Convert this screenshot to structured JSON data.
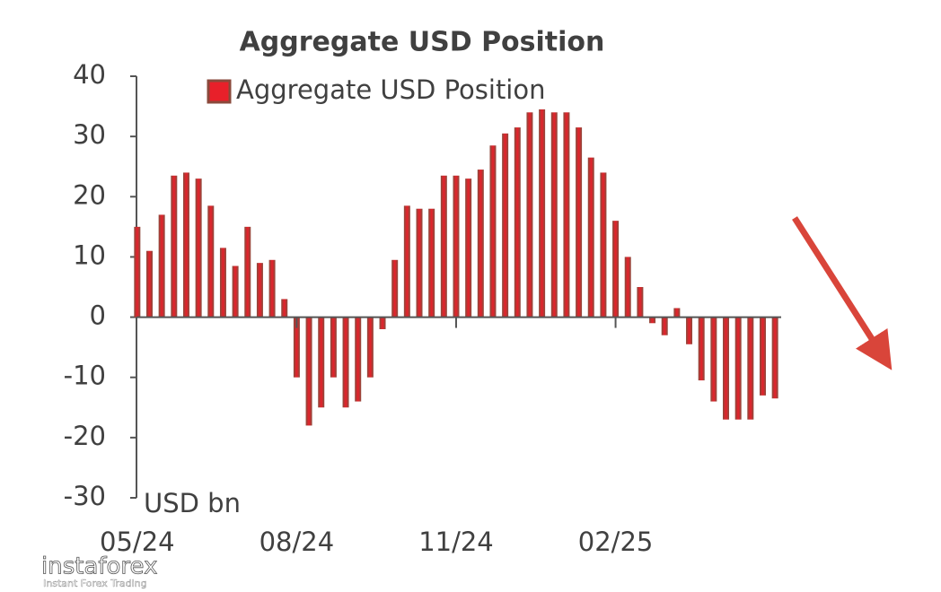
{
  "chart_data": {
    "type": "bar",
    "title": "Aggregate USD Position",
    "y_label": "USD bn",
    "categories": [
      "05/24",
      null,
      null,
      null,
      null,
      null,
      null,
      null,
      null,
      null,
      null,
      null,
      null,
      "08/24",
      null,
      null,
      null,
      null,
      null,
      null,
      null,
      null,
      null,
      null,
      null,
      null,
      "11/24",
      null,
      null,
      null,
      null,
      null,
      null,
      null,
      null,
      null,
      null,
      null,
      null,
      "02/25",
      null,
      null,
      null,
      null,
      null,
      null,
      null,
      null,
      null,
      null,
      null,
      null,
      null
    ],
    "series": [
      {
        "name": "Aggregate USD Position",
        "color": "#e8202a",
        "edge_color": "#8a4a3c",
        "values": [
          15,
          11,
          17,
          23.5,
          24,
          23,
          18.5,
          11.5,
          8.5,
          15,
          9,
          9.5,
          3,
          -10,
          -18,
          -15,
          -10,
          -15,
          -14,
          -10,
          -2,
          9.5,
          18.5,
          18,
          18,
          23.5,
          23.5,
          23,
          24.5,
          28.5,
          30.5,
          31.5,
          34,
          34.5,
          34,
          34,
          31.5,
          26.5,
          24,
          16,
          10,
          5,
          -1,
          -3,
          1.5,
          -4.5,
          -10.5,
          -14,
          -17,
          -17,
          -17,
          -13,
          -13.5
        ]
      }
    ],
    "ylim": [
      -30,
      40
    ],
    "yticks": [
      -30,
      -20,
      -10,
      0,
      10,
      20,
      30,
      40
    ],
    "legend": "top"
  },
  "watermark": {
    "brand": "instaforex",
    "tagline": "Instant Forex Trading"
  }
}
